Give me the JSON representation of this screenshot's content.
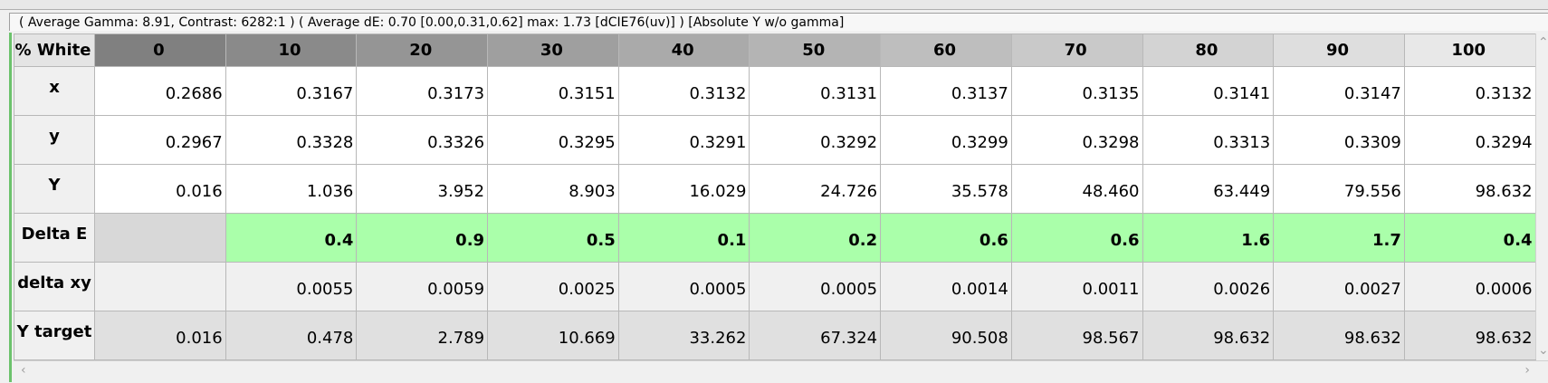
{
  "status_bar": "( Average Gamma: 8.91, Contrast: 6282:1 ) ( Average dE: 0.70 [0.00,0.31,0.62] max: 1.73 [dCIE76(uv)] ) [Absolute Y w/o gamma]",
  "table": {
    "corner": "% White",
    "columns": [
      "0",
      "10",
      "20",
      "30",
      "40",
      "50",
      "60",
      "70",
      "80",
      "90",
      "100"
    ],
    "rows": [
      {
        "label": "x",
        "cells": [
          "0.2686",
          "0.3167",
          "0.3173",
          "0.3151",
          "0.3132",
          "0.3131",
          "0.3137",
          "0.3135",
          "0.3141",
          "0.3147",
          "0.3132"
        ]
      },
      {
        "label": "y",
        "cells": [
          "0.2967",
          "0.3328",
          "0.3326",
          "0.3295",
          "0.3291",
          "0.3292",
          "0.3299",
          "0.3298",
          "0.3313",
          "0.3309",
          "0.3294"
        ]
      },
      {
        "label": "Y",
        "cells": [
          "0.016",
          "1.036",
          "3.952",
          "8.903",
          "16.029",
          "24.726",
          "35.578",
          "48.460",
          "63.449",
          "79.556",
          "98.632"
        ]
      },
      {
        "label": "Delta E",
        "cells": [
          null,
          "0.4",
          "0.9",
          "0.5",
          "0.1",
          "0.2",
          "0.6",
          "0.6",
          "1.6",
          "1.7",
          "0.4"
        ]
      },
      {
        "label": "delta xy",
        "cells": [
          null,
          "0.0055",
          "0.0059",
          "0.0025",
          "0.0005",
          "0.0005",
          "0.0014",
          "0.0011",
          "0.0026",
          "0.0027",
          "0.0006"
        ]
      },
      {
        "label": "Y target",
        "cells": [
          "0.016",
          "0.478",
          "2.789",
          "10.669",
          "33.262",
          "67.324",
          "90.508",
          "98.567",
          "98.632",
          "98.632",
          "98.632"
        ]
      }
    ]
  }
}
